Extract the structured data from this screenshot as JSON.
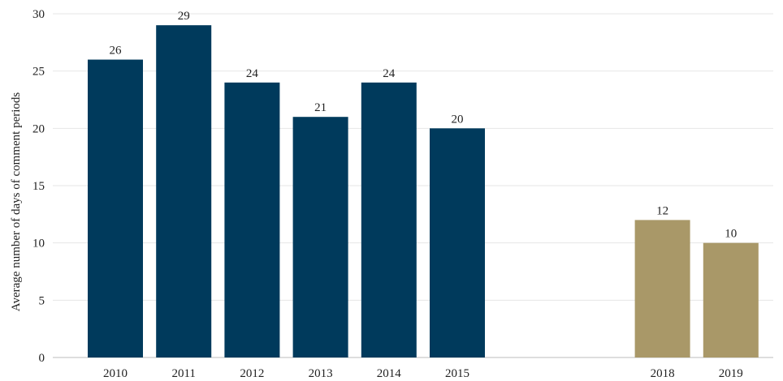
{
  "chart_data": {
    "type": "bar",
    "title": "",
    "xlabel": "",
    "ylabel": "Average number of days of comment periods",
    "ylim": [
      0,
      30
    ],
    "yticks": [
      0,
      5,
      10,
      15,
      20,
      25,
      30
    ],
    "grid": true,
    "categories": [
      "2010",
      "2011",
      "2012",
      "2013",
      "2014",
      "2015",
      "",
      "",
      "2018",
      "2019"
    ],
    "values": [
      26,
      29,
      24,
      21,
      24,
      20,
      null,
      null,
      12,
      10
    ],
    "data_labels": [
      "26",
      "29",
      "24",
      "21",
      "24",
      "20",
      "",
      "",
      "12",
      "10"
    ],
    "bar_colors": [
      "#003a5c",
      "#003a5c",
      "#003a5c",
      "#003a5c",
      "#003a5c",
      "#003a5c",
      "",
      "",
      "#a99868",
      "#a99868"
    ]
  }
}
